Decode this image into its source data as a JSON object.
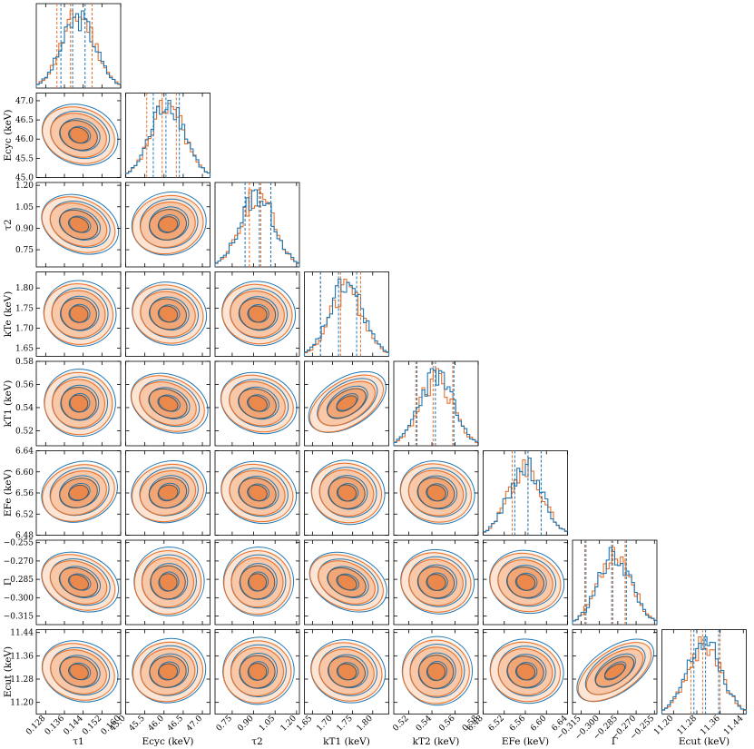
{
  "chart_data": {
    "type": "corner",
    "colors": {
      "blue": "#1f77b4",
      "orange": "#e8702a",
      "contour": "#555555"
    },
    "parameters": [
      {
        "label": "τ₁",
        "xlabel": "τ1",
        "ylabel": "",
        "range": [
          0.124,
          0.16
        ],
        "ticks": [
          0.128,
          0.136,
          0.144,
          0.152,
          0.16
        ],
        "tick_labels": [
          "0.128",
          "0.136",
          "0.144",
          "0.152",
          "0.160"
        ],
        "quantiles_blue": [
          0.1345,
          0.1395,
          0.1448
        ],
        "quantiles_orange": [
          0.1328,
          0.1386,
          0.1478
        ]
      },
      {
        "label": "E_cyc (keV)",
        "xlabel": "Ecyc (keV)",
        "ylabel": "Ecyc (keV)",
        "range": [
          45.0,
          47.2
        ],
        "ticks": [
          45.0,
          45.5,
          46.0,
          46.5,
          47.0
        ],
        "tick_labels": [
          "45.0",
          "45.5",
          "46.0",
          "46.5",
          "47.0"
        ],
        "quantiles_blue": [
          45.72,
          46.05,
          46.4
        ],
        "quantiles_orange": [
          45.55,
          45.95,
          46.32
        ]
      },
      {
        "label": "τ₂",
        "xlabel": "τ2",
        "ylabel": "τ2",
        "range": [
          0.63,
          1.22
        ],
        "ticks": [
          0.75,
          0.9,
          1.05,
          1.2
        ],
        "tick_labels": [
          "0.75",
          "0.90",
          "1.05",
          "1.20"
        ],
        "quantiles_blue": [
          0.84,
          0.94,
          1.02
        ],
        "quantiles_orange": [
          0.87,
          0.95,
          1.02
        ]
      },
      {
        "label": "kT1 (keV)",
        "xlabel": "kT1 (keV)",
        "ylabel": "kTe (keV)",
        "range": [
          1.63,
          1.84
        ],
        "ticks": [
          1.65,
          1.7,
          1.75,
          1.8
        ],
        "tick_labels": [
          "1.65",
          "1.70",
          "1.75",
          "1.80"
        ],
        "quantiles_blue": [
          1.67,
          1.715,
          1.76
        ],
        "quantiles_orange": [
          1.67,
          1.72,
          1.77
        ]
      },
      {
        "label": "kT2 (keV)",
        "xlabel": "kT2 (keV)",
        "ylabel": "kT1 (keV)",
        "range": [
          0.507,
          0.58
        ],
        "ticks": [
          0.52,
          0.54,
          0.56,
          0.58
        ],
        "tick_labels": [
          "0.52",
          "0.54",
          "0.56",
          "0.58"
        ],
        "quantiles_blue": [
          0.527,
          0.543,
          0.559
        ],
        "quantiles_orange": [
          0.526,
          0.541,
          0.558
        ]
      },
      {
        "label": "E_Fe (keV)",
        "xlabel": "EFe (keV)",
        "ylabel": "EFe (keV)",
        "range": [
          6.48,
          6.64
        ],
        "ticks": [
          6.48,
          6.52,
          6.56,
          6.6,
          6.64
        ],
        "tick_labels": [
          "6.48",
          "6.52",
          "6.56",
          "6.60",
          "6.64"
        ],
        "quantiles_blue": [
          6.54,
          6.565,
          6.59
        ],
        "quantiles_orange": [
          6.535,
          6.565,
          6.59
        ]
      },
      {
        "label": "Γ",
        "xlabel": "Γ",
        "ylabel": "Γ",
        "range": [
          -0.322,
          -0.253
        ],
        "ticks": [
          -0.315,
          -0.3,
          -0.285,
          -0.27,
          -0.255
        ],
        "tick_labels": [
          "−0.315",
          "−0.300",
          "−0.285",
          "−0.270",
          "−0.255"
        ],
        "quantiles_blue": [
          -0.311,
          -0.29,
          -0.278
        ],
        "quantiles_orange": [
          -0.312,
          -0.289,
          -0.279
        ]
      },
      {
        "label": "E_cut (keV)",
        "xlabel": "Ecut (keV)",
        "ylabel": "Ecut (keV)",
        "range": [
          11.16,
          11.45
        ],
        "ticks": [
          11.2,
          11.28,
          11.36,
          11.44
        ],
        "tick_labels": [
          "11.20",
          "11.28",
          "11.36",
          "11.44"
        ],
        "quantiles_blue": [
          11.27,
          11.31,
          11.355
        ],
        "quantiles_orange": [
          11.26,
          11.3,
          11.36
        ]
      }
    ],
    "correlations": [
      [],
      [
        -0.35
      ],
      [
        -0.45,
        0.25
      ],
      [
        -0.15,
        -0.25,
        -0.2
      ],
      [
        -0.1,
        -0.45,
        -0.35,
        0.7
      ],
      [
        0.35,
        0.3,
        -0.3,
        -0.2,
        -0.25
      ],
      [
        -0.45,
        0.05,
        0.05,
        -0.5,
        -0.2,
        -0.25
      ],
      [
        -0.35,
        0.2,
        0.1,
        -0.25,
        0.05,
        -0.2,
        0.8
      ]
    ],
    "grid": false
  }
}
